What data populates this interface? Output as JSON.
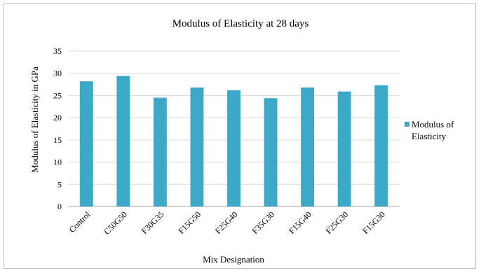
{
  "chart_data": {
    "type": "bar",
    "title": "Modulus of Elasticity  at 28 days",
    "xlabel": "Mix Designation",
    "ylabel": "Modulus of Elasticity in GPa",
    "categories": [
      "Control",
      "C50G50",
      "F30G35",
      "F15G50",
      "F25G40",
      "F35G30",
      "F15G40",
      "F25G30",
      "F15G30"
    ],
    "series": [
      {
        "name": "Modulus of Elasticity",
        "values": [
          28.2,
          29.4,
          24.5,
          26.8,
          26.2,
          24.4,
          26.8,
          25.9,
          27.3
        ],
        "color": "#3ea8c8"
      }
    ],
    "ylim": [
      0,
      35
    ],
    "yticks": [
      0,
      5,
      10,
      15,
      20,
      25,
      30,
      35
    ],
    "grid": true,
    "legend_position": "right",
    "legend_lines": [
      "Modulus of",
      "Elasticity"
    ]
  }
}
